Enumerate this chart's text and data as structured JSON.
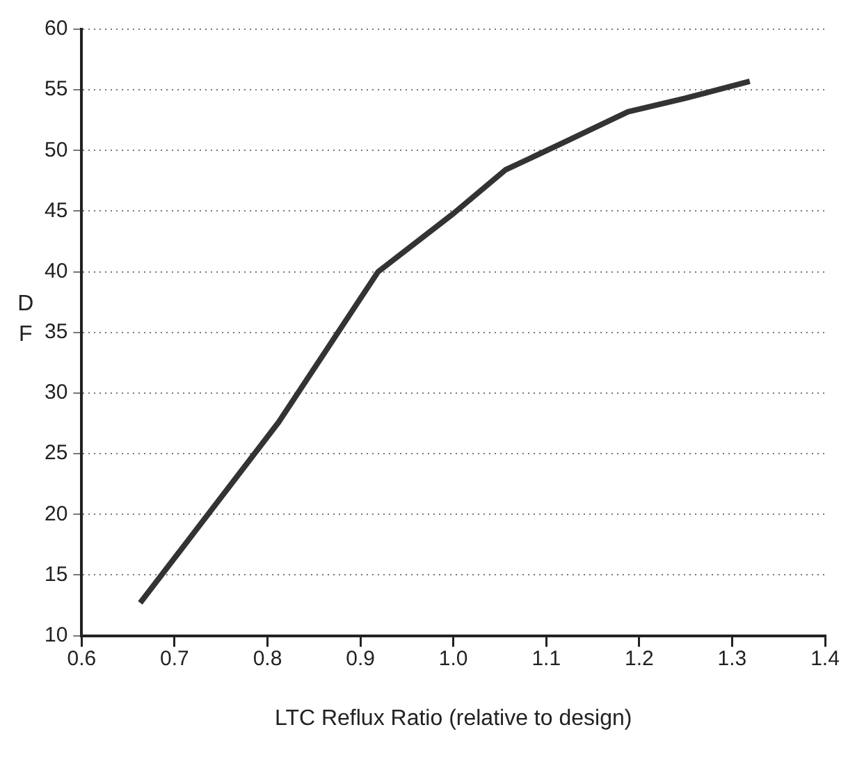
{
  "chart_data": {
    "type": "line",
    "xlabel": "LTC Reflux Ratio (relative to design)",
    "ylabel": "DF",
    "x": [
      0.663,
      0.812,
      0.919,
      1.0,
      1.056,
      1.117,
      1.188,
      1.249,
      1.319
    ],
    "series": [
      {
        "color": "#333333",
        "values": [
          12.7,
          27.6,
          40,
          44.8,
          48.4,
          50.6,
          53.2,
          54.3,
          55.7
        ]
      }
    ],
    "xlim": [
      0.6,
      1.4
    ],
    "xticks": [
      0.6,
      0.7,
      0.8,
      0.9,
      {
        "value": 1,
        "label": "1.0"
      },
      1.1,
      1.2,
      1.3,
      1.4
    ],
    "ylim": [
      10,
      60
    ],
    "yticks": [
      10,
      15,
      20,
      25,
      30,
      35,
      40,
      45,
      50,
      55,
      60
    ],
    "grid": "y",
    "legend": false,
    "marker": "none",
    "line_style": "solid"
  }
}
